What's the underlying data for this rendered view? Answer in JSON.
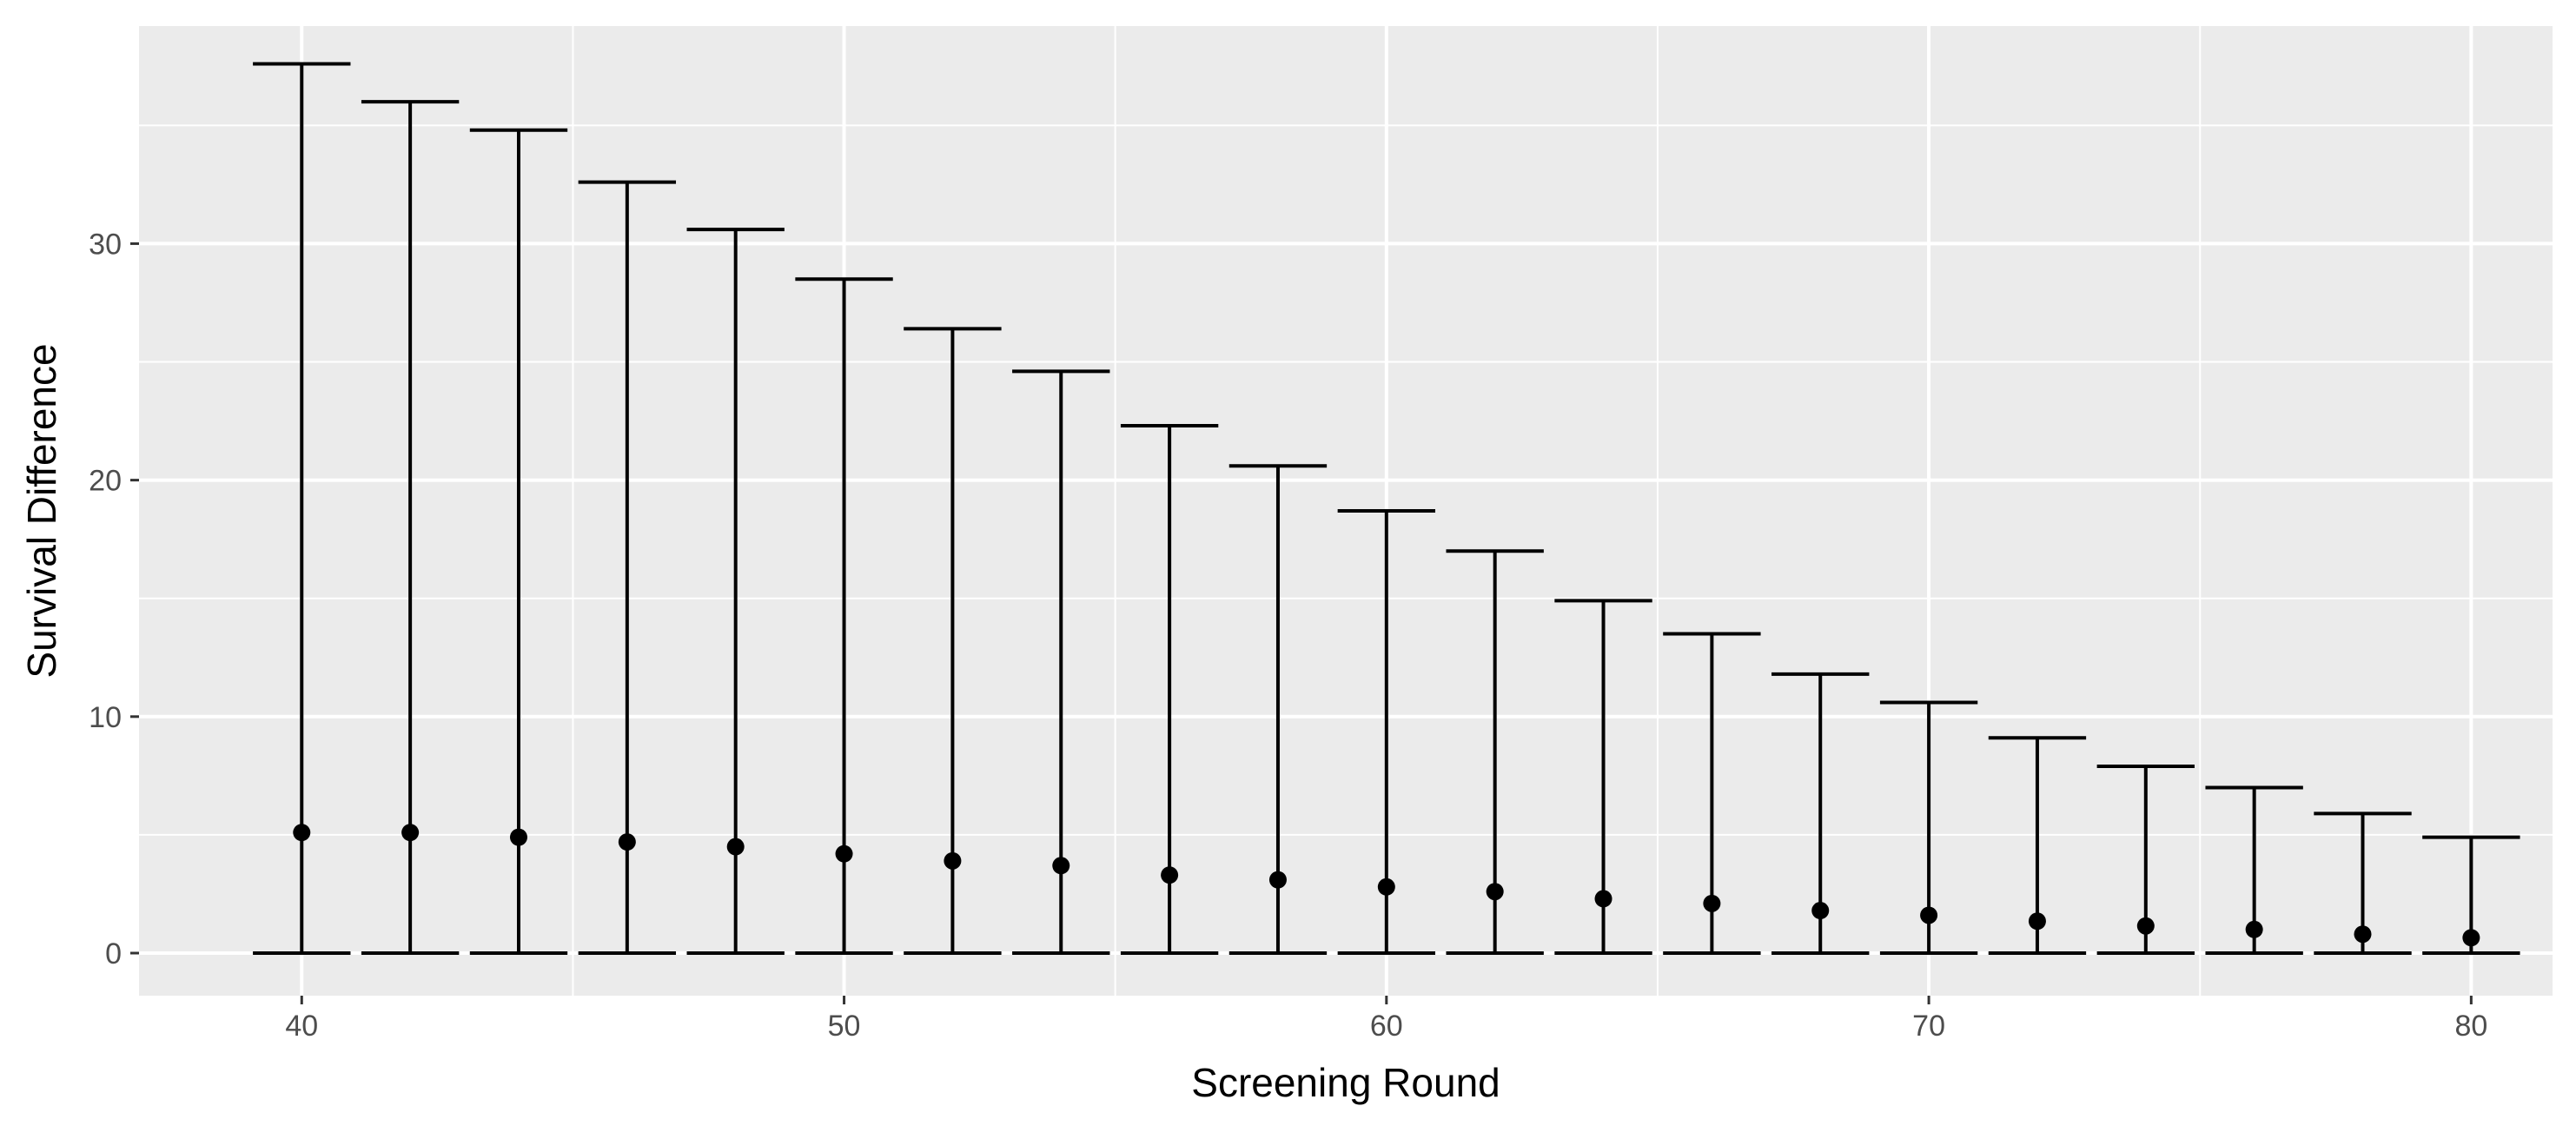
{
  "chart_data": {
    "type": "errorbar",
    "title": "",
    "xlabel": "Screening Round",
    "ylabel": "Survival Difference",
    "xlim": [
      37,
      81.5
    ],
    "ylim": [
      -1.8,
      39.2
    ],
    "x_ticks": [
      40,
      50,
      60,
      70,
      80
    ],
    "y_ticks": [
      0,
      10,
      20,
      30
    ],
    "grid": true,
    "legend": "none",
    "colors": {
      "panel": "#ebebeb",
      "grid": "#ffffff",
      "marks": "#000000",
      "tick_text": "#4d4d4d",
      "axis_title": "#000000"
    },
    "x": [
      40,
      42,
      44,
      46,
      48,
      50,
      52,
      54,
      56,
      58,
      60,
      62,
      64,
      66,
      68,
      70,
      72,
      74,
      76,
      78,
      80
    ],
    "y": [
      5.1,
      5.1,
      4.9,
      4.7,
      4.5,
      4.2,
      3.9,
      3.7,
      3.3,
      3.1,
      2.8,
      2.6,
      2.3,
      2.1,
      1.8,
      1.6,
      1.35,
      1.15,
      1.0,
      0.8,
      0.65
    ],
    "ymin": [
      0,
      0,
      0,
      0,
      0,
      0,
      0,
      0,
      0,
      0,
      0,
      0,
      0,
      0,
      0,
      0,
      0,
      0,
      0,
      0,
      0
    ],
    "ymax": [
      37.6,
      36.0,
      34.8,
      32.6,
      30.6,
      28.5,
      26.4,
      24.6,
      22.3,
      20.6,
      18.7,
      17.0,
      14.9,
      13.5,
      11.8,
      10.6,
      9.1,
      7.9,
      7.0,
      5.9,
      4.9
    ]
  }
}
